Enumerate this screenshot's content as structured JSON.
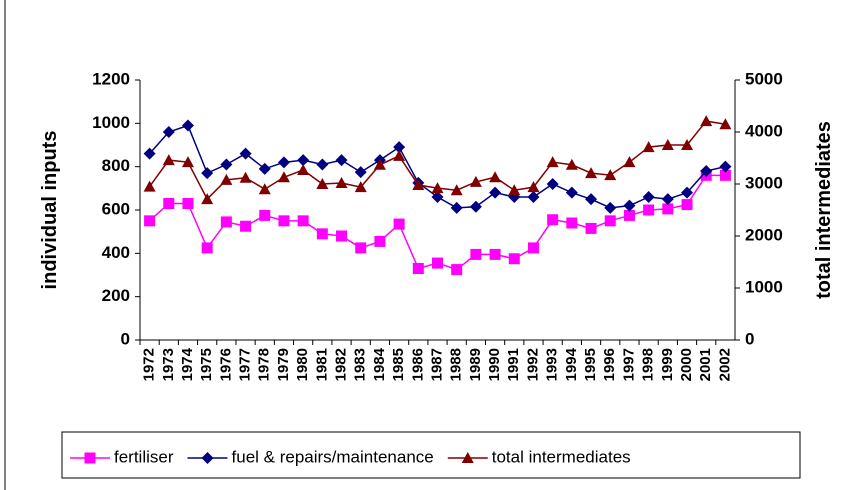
{
  "chart_data": {
    "type": "line",
    "y_label": "individual inputs",
    "y2_label": "total intermediates",
    "categories": [
      "1972",
      "1973",
      "1974",
      "1975",
      "1976",
      "1977",
      "1978",
      "1979",
      "1980",
      "1981",
      "1982",
      "1983",
      "1984",
      "1985",
      "1986",
      "1987",
      "1988",
      "1989",
      "1990",
      "1991",
      "1992",
      "1993",
      "1994",
      "1995",
      "1996",
      "1997",
      "1998",
      "1999",
      "2000",
      "2001",
      "2002"
    ],
    "series": [
      {
        "name": "fertiliser",
        "color": "#ff00ff",
        "marker": "square",
        "values": [
          550,
          630,
          630,
          425,
          545,
          525,
          575,
          550,
          550,
          490,
          480,
          425,
          455,
          535,
          330,
          355,
          325,
          395,
          395,
          375,
          425,
          555,
          540,
          515,
          550,
          575,
          600,
          605,
          625,
          760,
          760
        ]
      },
      {
        "name": "fuel & repairs/maintenance",
        "color": "#000080",
        "marker": "diamond",
        "values": [
          860,
          960,
          990,
          770,
          810,
          860,
          790,
          820,
          830,
          810,
          830,
          775,
          830,
          890,
          725,
          660,
          610,
          615,
          680,
          660,
          660,
          720,
          680,
          650,
          610,
          620,
          660,
          650,
          680,
          780,
          800
        ]
      },
      {
        "name": "total intermediates",
        "color": "#800000",
        "marker": "triangle",
        "axis": "y2",
        "values": [
          2950,
          3460,
          3420,
          2710,
          3080,
          3120,
          2900,
          3130,
          3270,
          3000,
          3020,
          2940,
          3370,
          3540,
          2980,
          2920,
          2880,
          3040,
          3130,
          2880,
          2940,
          3420,
          3370,
          3210,
          3170,
          3420,
          3710,
          3750,
          3750,
          4210,
          4150
        ]
      }
    ],
    "ylim": [
      0,
      1200
    ],
    "yticks": [
      0,
      200,
      400,
      600,
      800,
      1000,
      1200
    ],
    "y2lim": [
      0,
      5000
    ],
    "y2ticks": [
      0,
      1000,
      2000,
      3000,
      4000,
      5000
    ],
    "legend": "bottom"
  }
}
